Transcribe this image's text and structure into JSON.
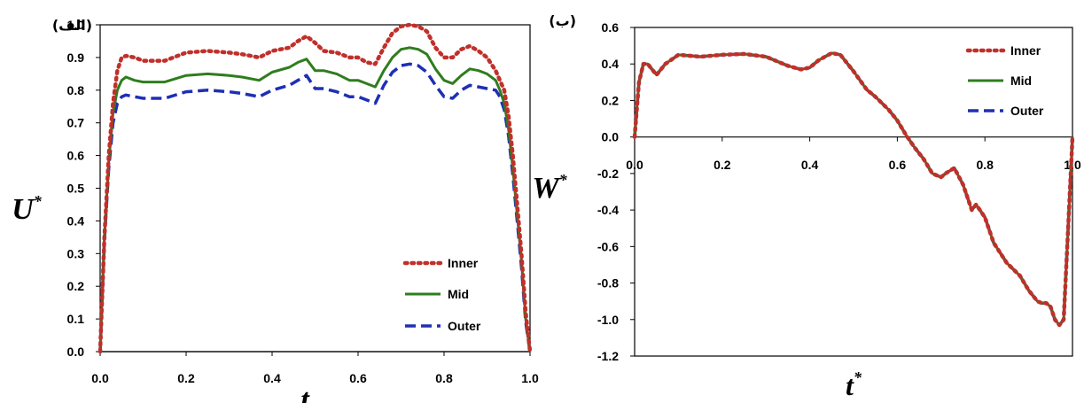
{
  "colors": {
    "inner": "#c0302a",
    "mid": "#2e7d1e",
    "outer": "#1f2fb5"
  },
  "chart_data": [
    {
      "type": "line",
      "panel_label": "(الف)",
      "xlabel": "t",
      "xlabel_sup": "",
      "ylabel": "U",
      "ylabel_sup": "*",
      "xlim": [
        0,
        1
      ],
      "ylim": [
        0,
        1
      ],
      "xticks": [
        "0.0",
        "0.2",
        "0.4",
        "0.6",
        "0.8",
        "1.0"
      ],
      "yticks": [
        "0.0",
        "0.1",
        "0.2",
        "0.3",
        "0.4",
        "0.5",
        "0.6",
        "0.7",
        "0.8",
        "0.9",
        "1.0"
      ],
      "legend_position": "bottom-right",
      "series": [
        {
          "name": "Inner",
          "style": "dotted",
          "x": [
            0,
            0.01,
            0.02,
            0.03,
            0.04,
            0.05,
            0.06,
            0.08,
            0.1,
            0.15,
            0.2,
            0.25,
            0.3,
            0.33,
            0.37,
            0.4,
            0.44,
            0.46,
            0.48,
            0.5,
            0.52,
            0.55,
            0.58,
            0.6,
            0.62,
            0.64,
            0.66,
            0.68,
            0.7,
            0.72,
            0.74,
            0.76,
            0.78,
            0.8,
            0.82,
            0.84,
            0.86,
            0.88,
            0.9,
            0.92,
            0.93,
            0.94,
            0.95,
            0.96,
            0.97,
            0.98,
            0.99,
            1.0
          ],
          "y": [
            0,
            0.35,
            0.6,
            0.76,
            0.86,
            0.9,
            0.905,
            0.9,
            0.89,
            0.89,
            0.915,
            0.92,
            0.915,
            0.91,
            0.9,
            0.92,
            0.93,
            0.95,
            0.965,
            0.945,
            0.92,
            0.915,
            0.9,
            0.9,
            0.885,
            0.88,
            0.93,
            0.975,
            0.995,
            1.0,
            0.995,
            0.98,
            0.93,
            0.9,
            0.9,
            0.925,
            0.935,
            0.92,
            0.9,
            0.86,
            0.83,
            0.8,
            0.72,
            0.6,
            0.45,
            0.3,
            0.12,
            0
          ]
        },
        {
          "name": "Mid",
          "style": "solid",
          "x": [
            0,
            0.01,
            0.02,
            0.03,
            0.04,
            0.05,
            0.06,
            0.08,
            0.1,
            0.15,
            0.2,
            0.25,
            0.3,
            0.33,
            0.37,
            0.4,
            0.44,
            0.46,
            0.48,
            0.5,
            0.52,
            0.55,
            0.58,
            0.6,
            0.62,
            0.64,
            0.66,
            0.68,
            0.7,
            0.72,
            0.74,
            0.76,
            0.78,
            0.8,
            0.82,
            0.84,
            0.86,
            0.88,
            0.9,
            0.92,
            0.93,
            0.94,
            0.95,
            0.96,
            0.97,
            0.98,
            0.99,
            1.0
          ],
          "y": [
            0,
            0.35,
            0.58,
            0.73,
            0.8,
            0.83,
            0.84,
            0.83,
            0.825,
            0.825,
            0.845,
            0.85,
            0.845,
            0.84,
            0.83,
            0.855,
            0.87,
            0.885,
            0.895,
            0.86,
            0.86,
            0.85,
            0.83,
            0.83,
            0.82,
            0.81,
            0.86,
            0.9,
            0.925,
            0.93,
            0.925,
            0.91,
            0.865,
            0.83,
            0.82,
            0.845,
            0.865,
            0.86,
            0.85,
            0.83,
            0.8,
            0.76,
            0.68,
            0.56,
            0.42,
            0.28,
            0.1,
            0
          ]
        },
        {
          "name": "Outer",
          "style": "dashed",
          "x": [
            0,
            0.01,
            0.02,
            0.03,
            0.04,
            0.05,
            0.06,
            0.08,
            0.1,
            0.15,
            0.2,
            0.25,
            0.3,
            0.33,
            0.37,
            0.4,
            0.44,
            0.46,
            0.48,
            0.5,
            0.52,
            0.55,
            0.58,
            0.6,
            0.62,
            0.64,
            0.66,
            0.68,
            0.7,
            0.72,
            0.74,
            0.76,
            0.78,
            0.8,
            0.82,
            0.84,
            0.86,
            0.88,
            0.9,
            0.92,
            0.93,
            0.94,
            0.95,
            0.96,
            0.97,
            0.98,
            0.99,
            1.0
          ],
          "y": [
            0,
            0.34,
            0.56,
            0.7,
            0.76,
            0.78,
            0.785,
            0.78,
            0.775,
            0.775,
            0.795,
            0.8,
            0.795,
            0.79,
            0.78,
            0.8,
            0.815,
            0.83,
            0.845,
            0.805,
            0.805,
            0.795,
            0.78,
            0.78,
            0.77,
            0.76,
            0.815,
            0.855,
            0.875,
            0.88,
            0.875,
            0.855,
            0.815,
            0.78,
            0.775,
            0.8,
            0.815,
            0.81,
            0.805,
            0.8,
            0.78,
            0.74,
            0.66,
            0.54,
            0.4,
            0.26,
            0.09,
            0
          ]
        }
      ]
    },
    {
      "type": "line",
      "panel_label": "(ب)",
      "xlabel": "t",
      "xlabel_sup": "*",
      "ylabel": "W",
      "ylabel_sup": "*",
      "xlim": [
        0,
        1
      ],
      "ylim": [
        -1.2,
        0.6
      ],
      "xticks": [
        "0.0",
        "0.2",
        "0.4",
        "0.6",
        "0.8",
        "1.0"
      ],
      "yticks": [
        "0.6",
        "0.4",
        "0.2",
        "0.0",
        "-0.2",
        "-0.4",
        "-0.6",
        "-0.8",
        "-1.0",
        "-1.2"
      ],
      "legend_position": "top-right",
      "series": [
        {
          "name": "Inner",
          "style": "dotted",
          "x": [
            0,
            0.01,
            0.02,
            0.03,
            0.05,
            0.07,
            0.1,
            0.15,
            0.2,
            0.25,
            0.3,
            0.35,
            0.38,
            0.4,
            0.42,
            0.45,
            0.47,
            0.5,
            0.53,
            0.55,
            0.58,
            0.6,
            0.62,
            0.64,
            0.66,
            0.68,
            0.7,
            0.71,
            0.73,
            0.75,
            0.77,
            0.78,
            0.8,
            0.82,
            0.85,
            0.88,
            0.9,
            0.92,
            0.93,
            0.94,
            0.95,
            0.96,
            0.97,
            0.98,
            0.99,
            1.0
          ],
          "y": [
            0,
            0.3,
            0.4,
            0.4,
            0.34,
            0.4,
            0.45,
            0.44,
            0.45,
            0.455,
            0.44,
            0.39,
            0.37,
            0.38,
            0.42,
            0.46,
            0.45,
            0.36,
            0.26,
            0.22,
            0.15,
            0.09,
            0.01,
            -0.06,
            -0.12,
            -0.2,
            -0.22,
            -0.2,
            -0.17,
            -0.26,
            -0.4,
            -0.37,
            -0.44,
            -0.58,
            -0.69,
            -0.76,
            -0.84,
            -0.9,
            -0.91,
            -0.91,
            -0.93,
            -1.0,
            -1.03,
            -1.0,
            -0.5,
            0
          ]
        },
        {
          "name": "Mid",
          "style": "solid",
          "x": [
            0,
            0.01,
            0.02,
            0.03,
            0.05,
            0.07,
            0.1,
            0.15,
            0.2,
            0.25,
            0.3,
            0.35,
            0.38,
            0.4,
            0.42,
            0.45,
            0.47,
            0.5,
            0.53,
            0.55,
            0.58,
            0.6,
            0.62,
            0.64,
            0.66,
            0.68,
            0.7,
            0.71,
            0.73,
            0.75,
            0.77,
            0.78,
            0.8,
            0.82,
            0.85,
            0.88,
            0.9,
            0.92,
            0.93,
            0.94,
            0.95,
            0.96,
            0.97,
            0.98,
            0.99,
            1.0
          ],
          "y": [
            0,
            0.3,
            0.4,
            0.4,
            0.34,
            0.4,
            0.45,
            0.44,
            0.45,
            0.455,
            0.44,
            0.39,
            0.37,
            0.38,
            0.42,
            0.46,
            0.45,
            0.36,
            0.26,
            0.22,
            0.15,
            0.09,
            0.01,
            -0.06,
            -0.12,
            -0.2,
            -0.22,
            -0.2,
            -0.17,
            -0.26,
            -0.4,
            -0.37,
            -0.44,
            -0.58,
            -0.69,
            -0.76,
            -0.84,
            -0.9,
            -0.91,
            -0.91,
            -0.93,
            -1.0,
            -1.03,
            -1.0,
            -0.5,
            0
          ]
        },
        {
          "name": "Outer",
          "style": "dashed",
          "x": [
            0,
            0.01,
            0.02,
            0.03,
            0.05,
            0.07,
            0.1,
            0.15,
            0.2,
            0.25,
            0.3,
            0.35,
            0.38,
            0.4,
            0.42,
            0.45,
            0.47,
            0.5,
            0.53,
            0.55,
            0.58,
            0.6,
            0.62,
            0.64,
            0.66,
            0.68,
            0.7,
            0.71,
            0.73,
            0.75,
            0.77,
            0.78,
            0.8,
            0.82,
            0.85,
            0.88,
            0.9,
            0.92,
            0.93,
            0.94,
            0.95,
            0.96,
            0.97,
            0.98,
            0.99,
            1.0
          ],
          "y": [
            0,
            0.3,
            0.4,
            0.4,
            0.34,
            0.4,
            0.45,
            0.44,
            0.45,
            0.455,
            0.44,
            0.39,
            0.37,
            0.38,
            0.42,
            0.46,
            0.45,
            0.36,
            0.26,
            0.22,
            0.15,
            0.09,
            0.01,
            -0.06,
            -0.12,
            -0.2,
            -0.22,
            -0.2,
            -0.17,
            -0.26,
            -0.4,
            -0.37,
            -0.44,
            -0.58,
            -0.69,
            -0.76,
            -0.84,
            -0.9,
            -0.91,
            -0.91,
            -0.93,
            -1.0,
            -1.03,
            -1.0,
            -0.5,
            0
          ]
        }
      ]
    }
  ]
}
